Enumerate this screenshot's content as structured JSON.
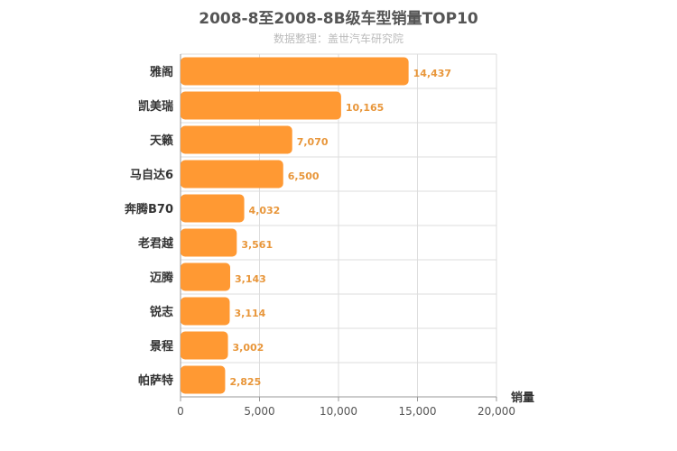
{
  "chart_data": {
    "type": "bar",
    "orientation": "horizontal",
    "title": "2008-8至2008-8B级车型销量TOP10",
    "subtitle": "数据整理：盖世汽车研究院",
    "xlabel": "销量",
    "ylabel": "",
    "xlim": [
      0,
      20000
    ],
    "xticks": [
      0,
      5000,
      10000,
      15000,
      20000
    ],
    "xtick_labels": [
      "0",
      "5,000",
      "10,000",
      "15,000",
      "20,000"
    ],
    "grid": true,
    "bar_color": "#FF9933",
    "label_color": "#E8963A",
    "categories": [
      "雅阁",
      "凯美瑞",
      "天籁",
      "马自达6",
      "奔腾B70",
      "老君越",
      "迈腾",
      "锐志",
      "景程",
      "帕萨特"
    ],
    "values": [
      14437,
      10165,
      7070,
      6500,
      4032,
      3561,
      3143,
      3114,
      3002,
      2825
    ],
    "value_labels": [
      "14,437",
      "10,165",
      "7,070",
      "6,500",
      "4,032",
      "3,561",
      "3,143",
      "3,114",
      "3,002",
      "2,825"
    ]
  }
}
